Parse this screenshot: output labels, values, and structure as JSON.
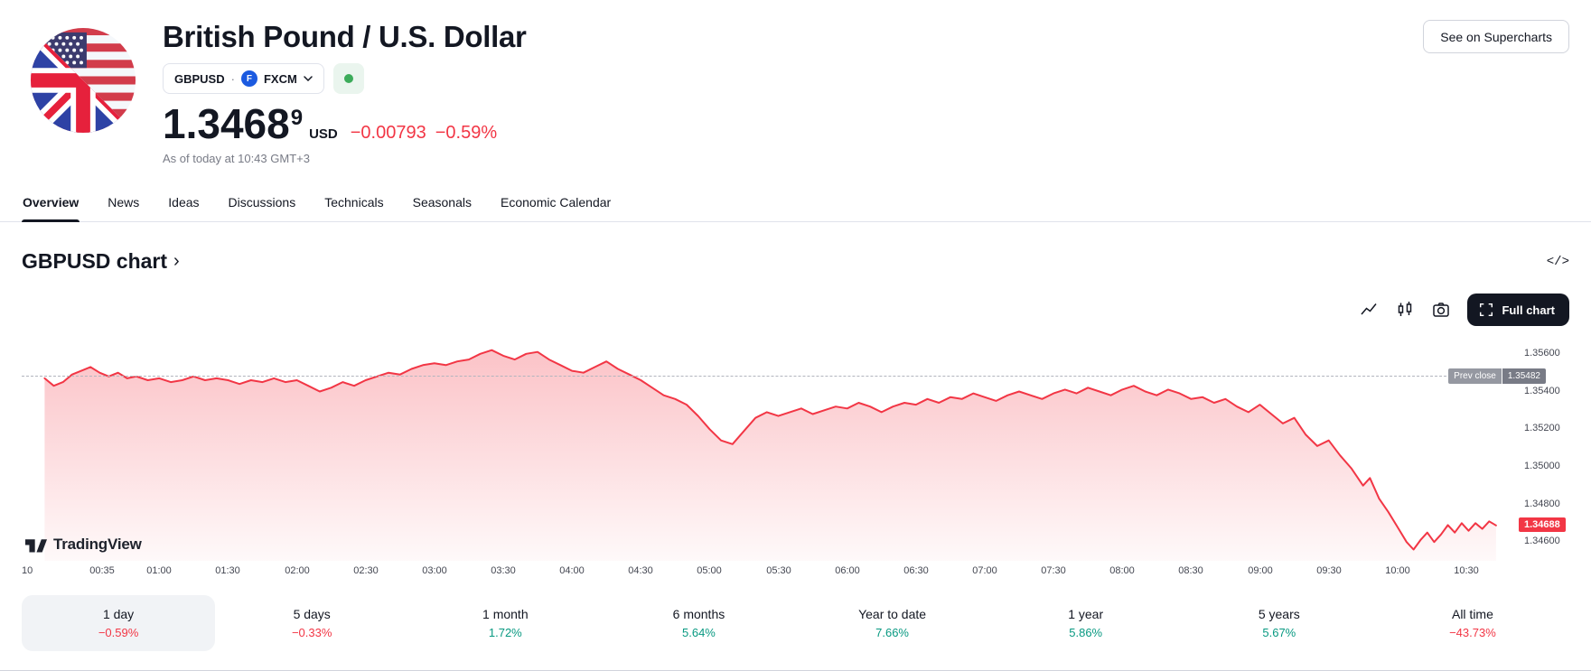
{
  "header": {
    "title": "British Pound / U.S. Dollar",
    "symbol_button": {
      "symbol": "GBPUSD",
      "separator": "·",
      "exchange": "FXCM"
    },
    "market_status": "market-open",
    "price": {
      "value": "1.3468",
      "sup": "9",
      "currency": "USD",
      "change_abs": "−0.00793",
      "change_pct": "−0.59%"
    },
    "as_of": "As of today at 10:43 GMT+3",
    "supercharts_button": "See on Supercharts"
  },
  "tabs": {
    "items": [
      "Overview",
      "News",
      "Ideas",
      "Discussions",
      "Technicals",
      "Seasonals",
      "Economic Calendar"
    ],
    "active_index": 0
  },
  "chart_section": {
    "heading": "GBPUSD chart",
    "heading_chevron": "›",
    "embed_icon": "</>",
    "full_chart_label": "Full chart",
    "watermark": "TradingView",
    "prev_close_label": "Prev close",
    "prev_close_value": "1.35482",
    "last_price_value": "1.34688"
  },
  "chart_data": {
    "type": "area",
    "title": "GBPUSD intraday 1-day chart",
    "x_axis": {
      "labels": [
        "10",
        "00:35",
        "01:00",
        "01:30",
        "02:00",
        "02:30",
        "03:00",
        "03:30",
        "04:00",
        "04:30",
        "05:00",
        "05:30",
        "06:00",
        "06:30",
        "07:00",
        "07:30",
        "08:00",
        "08:30",
        "09:00",
        "09:30",
        "10:00",
        "10:30"
      ],
      "label_minutes": [
        0,
        35,
        60,
        90,
        120,
        150,
        180,
        210,
        240,
        270,
        300,
        330,
        360,
        390,
        420,
        450,
        480,
        510,
        540,
        570,
        600,
        630
      ],
      "domain_minutes": [
        0,
        645
      ]
    },
    "y_axis": {
      "ticks": [
        "1.35600",
        "1.35400",
        "1.35200",
        "1.35000",
        "1.34800",
        "1.34600"
      ],
      "tick_values": [
        1.356,
        1.354,
        1.352,
        1.35,
        1.348,
        1.346
      ],
      "range": [
        1.345,
        1.357
      ]
    },
    "prev_close": 1.35482,
    "last": 1.34688,
    "points": [
      [
        10,
        1.3547
      ],
      [
        14,
        1.3543
      ],
      [
        18,
        1.3545
      ],
      [
        22,
        1.3549
      ],
      [
        26,
        1.3551
      ],
      [
        30,
        1.3553
      ],
      [
        34,
        1.355
      ],
      [
        38,
        1.3548
      ],
      [
        42,
        1.355
      ],
      [
        46,
        1.3547
      ],
      [
        50,
        1.3548
      ],
      [
        55,
        1.3546
      ],
      [
        60,
        1.3547
      ],
      [
        65,
        1.3545
      ],
      [
        70,
        1.3546
      ],
      [
        75,
        1.3548
      ],
      [
        80,
        1.3546
      ],
      [
        85,
        1.3547
      ],
      [
        90,
        1.3546
      ],
      [
        95,
        1.3544
      ],
      [
        100,
        1.3546
      ],
      [
        105,
        1.3545
      ],
      [
        110,
        1.3547
      ],
      [
        115,
        1.3545
      ],
      [
        120,
        1.3546
      ],
      [
        125,
        1.3543
      ],
      [
        130,
        1.354
      ],
      [
        135,
        1.3542
      ],
      [
        140,
        1.3545
      ],
      [
        145,
        1.3543
      ],
      [
        150,
        1.3546
      ],
      [
        155,
        1.3548
      ],
      [
        160,
        1.355
      ],
      [
        165,
        1.3549
      ],
      [
        170,
        1.3552
      ],
      [
        175,
        1.3554
      ],
      [
        180,
        1.3555
      ],
      [
        185,
        1.3554
      ],
      [
        190,
        1.3556
      ],
      [
        195,
        1.3557
      ],
      [
        200,
        1.356
      ],
      [
        205,
        1.3562
      ],
      [
        210,
        1.3559
      ],
      [
        215,
        1.3557
      ],
      [
        220,
        1.356
      ],
      [
        225,
        1.3561
      ],
      [
        230,
        1.3557
      ],
      [
        235,
        1.3554
      ],
      [
        240,
        1.3551
      ],
      [
        245,
        1.355
      ],
      [
        250,
        1.3553
      ],
      [
        255,
        1.3556
      ],
      [
        260,
        1.3552
      ],
      [
        265,
        1.3549
      ],
      [
        270,
        1.3546
      ],
      [
        275,
        1.3542
      ],
      [
        280,
        1.3538
      ],
      [
        285,
        1.3536
      ],
      [
        290,
        1.3533
      ],
      [
        295,
        1.3527
      ],
      [
        300,
        1.352
      ],
      [
        305,
        1.3514
      ],
      [
        310,
        1.3512
      ],
      [
        315,
        1.3519
      ],
      [
        320,
        1.3526
      ],
      [
        325,
        1.3529
      ],
      [
        330,
        1.3527
      ],
      [
        335,
        1.3529
      ],
      [
        340,
        1.3531
      ],
      [
        345,
        1.3528
      ],
      [
        350,
        1.353
      ],
      [
        355,
        1.3532
      ],
      [
        360,
        1.3531
      ],
      [
        365,
        1.3534
      ],
      [
        370,
        1.3532
      ],
      [
        375,
        1.3529
      ],
      [
        380,
        1.3532
      ],
      [
        385,
        1.3534
      ],
      [
        390,
        1.3533
      ],
      [
        395,
        1.3536
      ],
      [
        400,
        1.3534
      ],
      [
        405,
        1.3537
      ],
      [
        410,
        1.3536
      ],
      [
        415,
        1.3539
      ],
      [
        420,
        1.3537
      ],
      [
        425,
        1.3535
      ],
      [
        430,
        1.3538
      ],
      [
        435,
        1.354
      ],
      [
        440,
        1.3538
      ],
      [
        445,
        1.3536
      ],
      [
        450,
        1.3539
      ],
      [
        455,
        1.3541
      ],
      [
        460,
        1.3539
      ],
      [
        465,
        1.3542
      ],
      [
        470,
        1.354
      ],
      [
        475,
        1.3538
      ],
      [
        480,
        1.3541
      ],
      [
        485,
        1.3543
      ],
      [
        490,
        1.354
      ],
      [
        495,
        1.3538
      ],
      [
        500,
        1.3541
      ],
      [
        505,
        1.3539
      ],
      [
        510,
        1.3536
      ],
      [
        515,
        1.3537
      ],
      [
        520,
        1.3534
      ],
      [
        525,
        1.3536
      ],
      [
        530,
        1.3532
      ],
      [
        535,
        1.3529
      ],
      [
        540,
        1.3533
      ],
      [
        545,
        1.3528
      ],
      [
        550,
        1.3523
      ],
      [
        555,
        1.3526
      ],
      [
        560,
        1.3517
      ],
      [
        565,
        1.3511
      ],
      [
        570,
        1.3514
      ],
      [
        575,
        1.3506
      ],
      [
        580,
        1.3499
      ],
      [
        585,
        1.349
      ],
      [
        588,
        1.3494
      ],
      [
        592,
        1.3483
      ],
      [
        596,
        1.3476
      ],
      [
        600,
        1.3468
      ],
      [
        604,
        1.346
      ],
      [
        607,
        1.3456
      ],
      [
        610,
        1.3461
      ],
      [
        613,
        1.3465
      ],
      [
        616,
        1.346
      ],
      [
        619,
        1.3464
      ],
      [
        622,
        1.3469
      ],
      [
        625,
        1.3465
      ],
      [
        628,
        1.347
      ],
      [
        631,
        1.3466
      ],
      [
        634,
        1.347
      ],
      [
        637,
        1.3467
      ],
      [
        640,
        1.3471
      ],
      [
        643,
        1.34688
      ]
    ]
  },
  "range_bar": {
    "items": [
      {
        "label": "1 day",
        "change": "−0.59%",
        "direction": "down",
        "active": true
      },
      {
        "label": "5 days",
        "change": "−0.33%",
        "direction": "down",
        "active": false
      },
      {
        "label": "1 month",
        "change": "1.72%",
        "direction": "up",
        "active": false
      },
      {
        "label": "6 months",
        "change": "5.64%",
        "direction": "up",
        "active": false
      },
      {
        "label": "Year to date",
        "change": "7.66%",
        "direction": "up",
        "active": false
      },
      {
        "label": "1 year",
        "change": "5.86%",
        "direction": "up",
        "active": false
      },
      {
        "label": "5 years",
        "change": "5.67%",
        "direction": "up",
        "active": false
      },
      {
        "label": "All time",
        "change": "−43.73%",
        "direction": "down",
        "active": false
      }
    ]
  },
  "colors": {
    "down_red": "#F23645",
    "up_green": "#089981",
    "market_open_dot": "#3CAB5A",
    "prev_close_badge": "#787B86",
    "last_price_badge": "#F23645",
    "full_chart_button_bg": "#131722",
    "active_range_bg": "#F1F3F6",
    "divider": "#E0E3EB"
  }
}
